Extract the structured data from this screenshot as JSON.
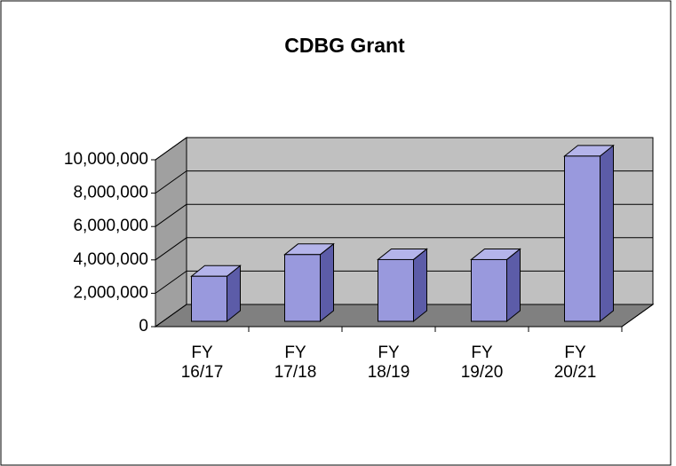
{
  "chart_data": {
    "type": "bar3d",
    "title": "CDBG Grant",
    "categories": [
      "FY 16/17",
      "FY 17/18",
      "FY 18/19",
      "FY 19/20",
      "FY 20/21"
    ],
    "values": [
      2700000,
      4000000,
      3700000,
      3700000,
      9900000
    ],
    "color": "#9999dd",
    "ylim": [
      0,
      10000000
    ],
    "yticks": [
      0,
      {
        "value": 2000000,
        "label": "2,000,000"
      },
      {
        "value": 4000000,
        "label": "4,000,000"
      },
      {
        "value": 6000000,
        "label": "6,000,000"
      },
      {
        "value": 8000000,
        "label": "8,000,000"
      },
      {
        "value": 10000000,
        "label": "10,000,000"
      }
    ],
    "grid": true
  }
}
